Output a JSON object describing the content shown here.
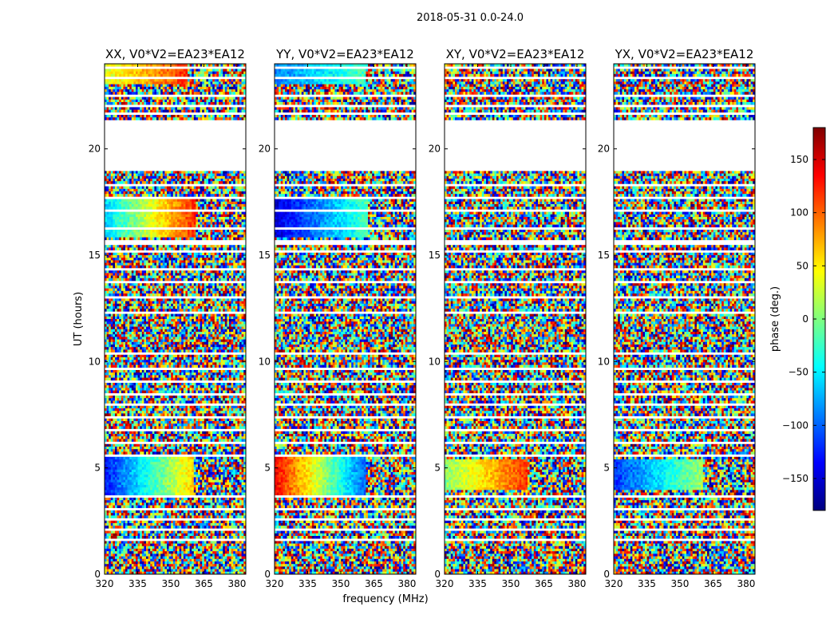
{
  "figure": {
    "suptitle": "2018-05-31 0.0-24.0",
    "xlabel": "frequency (MHz)",
    "ylabel": "UT (hours)"
  },
  "colorbar": {
    "label": "phase (deg.)",
    "ticks": [
      150,
      100,
      50,
      0,
      -50,
      -100,
      -150
    ],
    "tick_labels": [
      "150",
      "100",
      "50",
      "0",
      "−50",
      "−100",
      "−150"
    ],
    "vmin": -180,
    "vmax": 180,
    "colormap": "jet",
    "colors": [
      "#00007f",
      "#0000ff",
      "#007fff",
      "#00ffff",
      "#7fff7f",
      "#ffff00",
      "#ff7f00",
      "#ff0000",
      "#7f0000"
    ]
  },
  "chart_data": [
    {
      "type": "heatmap",
      "title": "XX, V0*V2=EA23*EA12",
      "xlim": [
        320,
        384
      ],
      "ylim": [
        0,
        24
      ],
      "xticks": [
        320,
        335,
        350,
        365,
        380
      ],
      "xtick_labels": [
        "320",
        "335",
        "350",
        "365",
        "380"
      ],
      "yticks": [
        0,
        5,
        10,
        15,
        20
      ],
      "ytick_labels": [
        "0",
        "5",
        "10",
        "15",
        "20"
      ],
      "z_label": "phase (deg.)",
      "no_data_ut_ranges": [
        [
          19.0,
          21.3
        ]
      ],
      "coherent_regions": [
        {
          "ut": [
            3.7,
            5.6
          ],
          "freq": [
            320,
            360
          ],
          "phase": [
            -130,
            60
          ]
        },
        {
          "ut": [
            15.8,
            17.6
          ],
          "freq": [
            320,
            361
          ],
          "phase": [
            -60,
            120
          ]
        },
        {
          "ut": [
            23.0,
            24.0
          ],
          "freq": [
            320,
            358
          ],
          "phase": [
            30,
            120
          ]
        }
      ]
    },
    {
      "type": "heatmap",
      "title": "YY, V0*V2=EA23*EA12",
      "xlim": [
        320,
        384
      ],
      "ylim": [
        0,
        24
      ],
      "xticks": [
        320,
        335,
        350,
        365,
        380
      ],
      "xtick_labels": [
        "320",
        "335",
        "350",
        "365",
        "380"
      ],
      "yticks": [
        0,
        5,
        10,
        15,
        20
      ],
      "ytick_labels": [
        "0",
        "5",
        "10",
        "15",
        "20"
      ],
      "z_label": "phase (deg.)",
      "no_data_ut_ranges": [
        [
          19.0,
          21.3
        ]
      ],
      "coherent_regions": [
        {
          "ut": [
            3.7,
            5.6
          ],
          "freq": [
            320,
            361
          ],
          "phase": [
            140,
            -100
          ]
        },
        {
          "ut": [
            15.8,
            17.6
          ],
          "freq": [
            320,
            362
          ],
          "phase": [
            -150,
            -20
          ]
        },
        {
          "ut": [
            23.0,
            24.0
          ],
          "freq": [
            320,
            361
          ],
          "phase": [
            -90,
            -20
          ]
        }
      ]
    },
    {
      "type": "heatmap",
      "title": "XY, V0*V2=EA23*EA12",
      "xlim": [
        320,
        384
      ],
      "ylim": [
        0,
        24
      ],
      "xticks": [
        320,
        335,
        350,
        365,
        380
      ],
      "xtick_labels": [
        "320",
        "335",
        "350",
        "365",
        "380"
      ],
      "yticks": [
        0,
        5,
        10,
        15,
        20
      ],
      "ytick_labels": [
        "0",
        "5",
        "10",
        "15",
        "20"
      ],
      "z_label": "phase (deg.)",
      "no_data_ut_ranges": [
        [
          19.0,
          21.3
        ]
      ],
      "coherent_regions": [
        {
          "ut": [
            3.9,
            5.4
          ],
          "freq": [
            320,
            358
          ],
          "phase": [
            0,
            120
          ]
        }
      ]
    },
    {
      "type": "heatmap",
      "title": "YX, V0*V2=EA23*EA12",
      "xlim": [
        320,
        384
      ],
      "ylim": [
        0,
        24
      ],
      "xticks": [
        320,
        335,
        350,
        365,
        380
      ],
      "xtick_labels": [
        "320",
        "335",
        "350",
        "365",
        "380"
      ],
      "yticks": [
        0,
        5,
        10,
        15,
        20
      ],
      "ytick_labels": [
        "0",
        "5",
        "10",
        "15",
        "20"
      ],
      "z_label": "phase (deg.)",
      "no_data_ut_ranges": [
        [
          19.0,
          21.3
        ]
      ],
      "coherent_regions": [
        {
          "ut": [
            3.9,
            5.4
          ],
          "freq": [
            320,
            360
          ],
          "phase": [
            -120,
            10
          ]
        }
      ]
    }
  ]
}
